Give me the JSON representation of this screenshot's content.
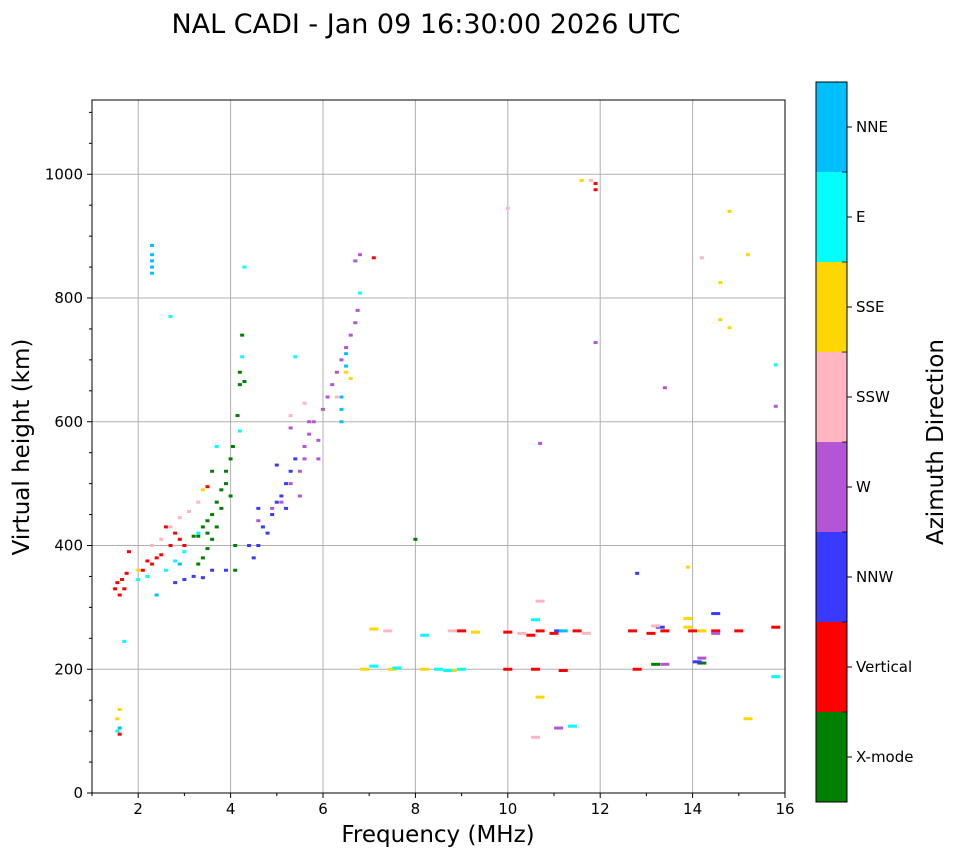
{
  "chart_data": {
    "type": "scatter",
    "title": "NAL CADI - Jan 09 16:30:00 2026 UTC",
    "xlabel": "Frequency (MHz)",
    "ylabel": "Virtual height (km)",
    "xlim": [
      1,
      16
    ],
    "ylim": [
      0,
      1120
    ],
    "xticks": [
      2,
      4,
      6,
      8,
      10,
      12,
      14,
      16
    ],
    "yticks": [
      0,
      200,
      400,
      600,
      800,
      1000
    ],
    "grid": true,
    "colorbar": {
      "label": "Azimuth Direction",
      "categories": [
        {
          "name": "X-mode",
          "color": "#008000"
        },
        {
          "name": "Vertical",
          "color": "#ff0000"
        },
        {
          "name": "NNW",
          "color": "#3a3aff"
        },
        {
          "name": "W",
          "color": "#b455d6"
        },
        {
          "name": "SSW",
          "color": "#ffb6c1"
        },
        {
          "name": "SSE",
          "color": "#ffd700"
        },
        {
          "name": "E",
          "color": "#00ffff"
        },
        {
          "name": "NNE",
          "color": "#00bfff"
        }
      ]
    },
    "series": [
      {
        "name": "X-mode",
        "points": [
          [
            3.3,
            415
          ],
          [
            3.4,
            430
          ],
          [
            3.5,
            420
          ],
          [
            3.5,
            440
          ],
          [
            3.6,
            410
          ],
          [
            3.6,
            450
          ],
          [
            3.7,
            430
          ],
          [
            3.7,
            470
          ],
          [
            3.8,
            460
          ],
          [
            3.8,
            490
          ],
          [
            3.9,
            500
          ],
          [
            3.9,
            520
          ],
          [
            4.0,
            480
          ],
          [
            4.0,
            540
          ],
          [
            4.05,
            560
          ],
          [
            4.1,
            400
          ],
          [
            4.1,
            360
          ],
          [
            4.15,
            610
          ],
          [
            4.2,
            660
          ],
          [
            4.2,
            680
          ],
          [
            4.25,
            740
          ],
          [
            4.3,
            665
          ],
          [
            3.4,
            380
          ],
          [
            3.5,
            395
          ],
          [
            3.3,
            370
          ],
          [
            8.0,
            410
          ],
          [
            13.2,
            208
          ],
          [
            14.2,
            210
          ],
          [
            3.2,
            415
          ],
          [
            3.6,
            520
          ]
        ]
      },
      {
        "name": "Vertical",
        "points": [
          [
            1.5,
            330
          ],
          [
            1.55,
            340
          ],
          [
            1.6,
            320
          ],
          [
            1.65,
            345
          ],
          [
            1.7,
            330
          ],
          [
            1.75,
            355
          ],
          [
            1.8,
            390
          ],
          [
            2.1,
            360
          ],
          [
            2.2,
            375
          ],
          [
            2.3,
            370
          ],
          [
            2.4,
            380
          ],
          [
            2.5,
            385
          ],
          [
            2.7,
            400
          ],
          [
            2.8,
            420
          ],
          [
            2.9,
            410
          ],
          [
            3.0,
            400
          ],
          [
            1.6,
            95
          ],
          [
            9.0,
            262
          ],
          [
            10.0,
            260
          ],
          [
            10.5,
            255
          ],
          [
            10.7,
            262
          ],
          [
            11.0,
            258
          ],
          [
            11.5,
            262
          ],
          [
            12.7,
            262
          ],
          [
            13.1,
            258
          ],
          [
            13.4,
            262
          ],
          [
            14.0,
            262
          ],
          [
            14.5,
            262
          ],
          [
            15.0,
            262
          ],
          [
            15.8,
            268
          ],
          [
            10.0,
            200
          ],
          [
            10.6,
            200
          ],
          [
            11.2,
            198
          ],
          [
            12.8,
            200
          ],
          [
            11.9,
            975
          ],
          [
            11.9,
            985
          ],
          [
            7.1,
            865
          ],
          [
            3.5,
            495
          ],
          [
            2.6,
            430
          ]
        ]
      },
      {
        "name": "NNW",
        "points": [
          [
            2.8,
            340
          ],
          [
            3.0,
            345
          ],
          [
            3.2,
            350
          ],
          [
            3.4,
            348
          ],
          [
            3.6,
            360
          ],
          [
            4.5,
            380
          ],
          [
            4.6,
            400
          ],
          [
            4.8,
            420
          ],
          [
            4.9,
            450
          ],
          [
            5.0,
            470
          ],
          [
            5.1,
            480
          ],
          [
            5.2,
            500
          ],
          [
            5.3,
            520
          ],
          [
            5.4,
            540
          ],
          [
            5.0,
            530
          ],
          [
            4.7,
            430
          ],
          [
            4.4,
            400
          ],
          [
            5.2,
            460
          ],
          [
            4.6,
            460
          ],
          [
            3.9,
            360
          ],
          [
            12.8,
            355
          ],
          [
            14.5,
            290
          ],
          [
            13.3,
            268
          ],
          [
            14.1,
            212
          ],
          [
            11.1,
            262
          ]
        ]
      },
      {
        "name": "W",
        "points": [
          [
            4.6,
            440
          ],
          [
            4.9,
            460
          ],
          [
            5.1,
            470
          ],
          [
            5.3,
            500
          ],
          [
            5.5,
            520
          ],
          [
            5.6,
            560
          ],
          [
            5.7,
            580
          ],
          [
            5.8,
            600
          ],
          [
            6.0,
            620
          ],
          [
            6.1,
            640
          ],
          [
            6.2,
            660
          ],
          [
            6.3,
            680
          ],
          [
            6.4,
            700
          ],
          [
            6.5,
            720
          ],
          [
            6.6,
            740
          ],
          [
            6.7,
            760
          ],
          [
            6.75,
            780
          ],
          [
            6.8,
            870
          ],
          [
            5.5,
            480
          ],
          [
            5.6,
            540
          ],
          [
            5.7,
            600
          ],
          [
            5.9,
            540
          ],
          [
            5.3,
            590
          ],
          [
            5.9,
            570
          ],
          [
            10.7,
            565
          ],
          [
            13.4,
            655
          ],
          [
            15.8,
            625
          ],
          [
            11.9,
            728
          ],
          [
            11.1,
            105
          ],
          [
            14.5,
            258
          ],
          [
            14.2,
            218
          ],
          [
            13.4,
            208
          ],
          [
            6.7,
            860
          ]
        ]
      },
      {
        "name": "SSW",
        "points": [
          [
            2.3,
            400
          ],
          [
            2.5,
            410
          ],
          [
            2.7,
            430
          ],
          [
            2.9,
            445
          ],
          [
            3.1,
            455
          ],
          [
            3.3,
            470
          ],
          [
            5.3,
            610
          ],
          [
            5.6,
            630
          ],
          [
            6.3,
            640
          ],
          [
            10.0,
            945
          ],
          [
            10.6,
            90
          ],
          [
            11.8,
            990
          ],
          [
            14.2,
            865
          ],
          [
            8.8,
            262
          ],
          [
            10.3,
            258
          ],
          [
            11.7,
            258
          ],
          [
            13.2,
            270
          ],
          [
            10.7,
            310
          ],
          [
            7.4,
            262
          ]
        ]
      },
      {
        "name": "SSE",
        "points": [
          [
            1.55,
            120
          ],
          [
            1.6,
            135
          ],
          [
            6.9,
            200
          ],
          [
            7.1,
            265
          ],
          [
            7.5,
            200
          ],
          [
            8.2,
            200
          ],
          [
            8.8,
            198
          ],
          [
            9.3,
            260
          ],
          [
            10.7,
            155
          ],
          [
            11.6,
            990
          ],
          [
            13.9,
            365
          ],
          [
            13.9,
            282
          ],
          [
            13.9,
            268
          ],
          [
            14.2,
            262
          ],
          [
            14.6,
            825
          ],
          [
            14.6,
            765
          ],
          [
            14.8,
            752
          ],
          [
            14.8,
            940
          ],
          [
            15.2,
            870
          ],
          [
            15.2,
            120
          ],
          [
            6.5,
            680
          ],
          [
            6.6,
            670
          ],
          [
            3.4,
            490
          ],
          [
            2.0,
            360
          ]
        ]
      },
      {
        "name": "E",
        "points": [
          [
            1.55,
            100
          ],
          [
            1.7,
            245
          ],
          [
            2.0,
            345
          ],
          [
            2.2,
            350
          ],
          [
            2.6,
            360
          ],
          [
            2.8,
            375
          ],
          [
            3.0,
            390
          ],
          [
            3.3,
            420
          ],
          [
            3.7,
            560
          ],
          [
            4.2,
            585
          ],
          [
            4.3,
            850
          ],
          [
            5.4,
            705
          ],
          [
            6.8,
            808
          ],
          [
            8.2,
            255
          ],
          [
            8.5,
            200
          ],
          [
            8.7,
            198
          ],
          [
            9.0,
            200
          ],
          [
            10.6,
            280
          ],
          [
            11.4,
            108
          ],
          [
            15.8,
            692
          ],
          [
            15.8,
            188
          ],
          [
            7.1,
            205
          ],
          [
            7.6,
            202
          ],
          [
            2.7,
            770
          ],
          [
            4.25,
            705
          ]
        ]
      },
      {
        "name": "NNE",
        "points": [
          [
            2.3,
            885
          ],
          [
            2.3,
            870
          ],
          [
            2.3,
            860
          ],
          [
            2.3,
            850
          ],
          [
            2.3,
            840
          ],
          [
            2.4,
            320
          ],
          [
            6.4,
            640
          ],
          [
            6.4,
            620
          ],
          [
            6.4,
            600
          ],
          [
            6.5,
            710
          ],
          [
            6.5,
            690
          ],
          [
            1.6,
            105
          ],
          [
            2.9,
            370
          ],
          [
            11.2,
            262
          ]
        ]
      }
    ]
  }
}
